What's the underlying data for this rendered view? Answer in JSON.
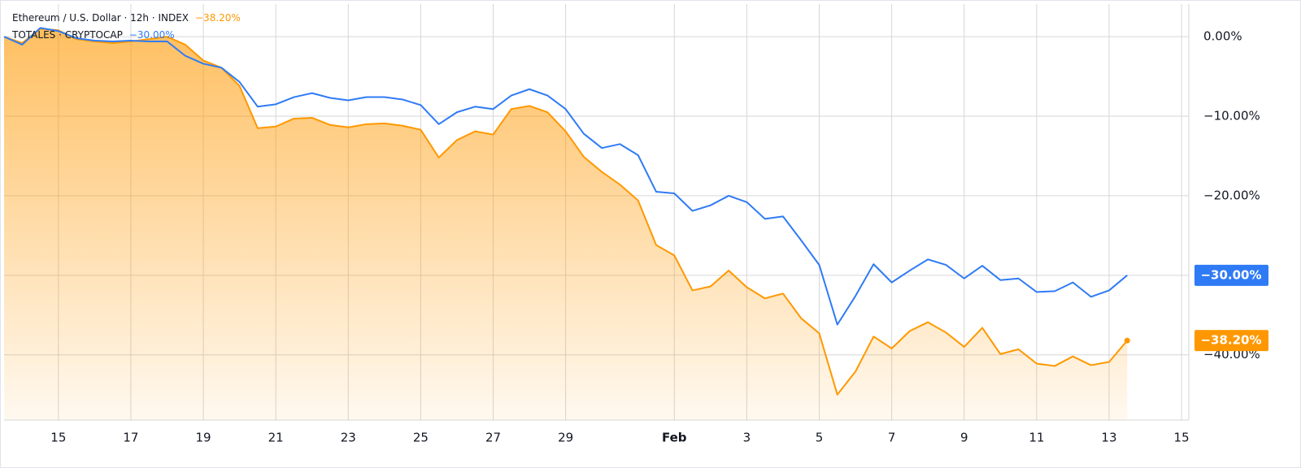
{
  "chart_data": {
    "type": "line",
    "x": [
      13.5,
      14,
      14.5,
      15,
      15.5,
      16,
      16.5,
      17,
      17.5,
      18,
      18.5,
      19,
      19.5,
      20,
      20.5,
      21,
      21.5,
      22,
      22.5,
      23,
      23.5,
      24,
      24.5,
      25,
      25.5,
      26,
      26.5,
      27,
      27.5,
      28,
      28.5,
      29,
      29.5,
      30,
      30.5,
      31,
      31.5,
      32,
      32.5,
      33,
      33.5,
      34,
      34.5,
      35,
      35.5,
      36,
      36.5,
      37,
      37.5,
      38,
      38.5,
      39,
      39.5,
      40,
      40.5,
      41,
      41.5,
      42,
      42.5,
      43,
      43.5,
      44,
      44.5
    ],
    "series": [
      {
        "name": "Ethereum / U.S. Dollar · 12h · INDEX",
        "color": "#ff9800",
        "area": true,
        "last_value_label": "−38.20%",
        "values": [
          0,
          -0.8,
          1.0,
          0.8,
          -0.3,
          -0.6,
          -0.8,
          -0.6,
          -0.3,
          0.0,
          -1.0,
          -3.0,
          -3.9,
          -6.2,
          -11.5,
          -11.3,
          -10.3,
          -10.2,
          -11.1,
          -11.4,
          -11.0,
          -10.9,
          -11.2,
          -11.7,
          -15.2,
          -13.0,
          -11.9,
          -12.3,
          -9.1,
          -8.7,
          -9.5,
          -11.9,
          -15.1,
          -17.0,
          -18.6,
          -20.6,
          -26.2,
          -27.5,
          -31.9,
          -31.4,
          -29.4,
          -31.5,
          -32.9,
          -32.3,
          -35.4,
          -37.3,
          -45.0,
          -42.1,
          -37.7,
          -39.2,
          -37.0,
          -35.9,
          -37.2,
          -39.0,
          -36.6,
          -39.9,
          -39.3,
          -41.1,
          -41.4,
          -40.2,
          -41.3,
          -40.9,
          -38.2
        ]
      },
      {
        "name": "TOTALES · CRYPTOCAP",
        "color": "#2f7bf5",
        "area": false,
        "last_value_label": "−30.00%",
        "values": [
          0,
          -1.0,
          1.1,
          0.7,
          -0.2,
          -0.5,
          -0.6,
          -0.5,
          -0.6,
          -0.6,
          -2.4,
          -3.4,
          -3.9,
          -5.7,
          -8.8,
          -8.5,
          -7.6,
          -7.1,
          -7.7,
          -8.0,
          -7.6,
          -7.6,
          -7.9,
          -8.6,
          -11.0,
          -9.5,
          -8.8,
          -9.1,
          -7.4,
          -6.6,
          -7.4,
          -9.1,
          -12.2,
          -14.0,
          -13.5,
          -14.9,
          -19.5,
          -19.7,
          -21.9,
          -21.2,
          -20.0,
          -20.8,
          -22.9,
          -22.6,
          -25.6,
          -28.7,
          -36.2,
          -32.6,
          -28.6,
          -30.9,
          -29.4,
          -28.0,
          -28.7,
          -30.4,
          -28.8,
          -30.6,
          -30.4,
          -32.1,
          -32.0,
          -30.9,
          -32.7,
          -31.9,
          -30.0
        ]
      }
    ],
    "xlim": [
      13.5,
      46.2
    ],
    "xticks": [
      15,
      17,
      19,
      21,
      23,
      25,
      27,
      29,
      {
        "value": 32,
        "label": "Feb"
      },
      {
        "value": 34,
        "label": "3"
      },
      {
        "value": 36,
        "label": "5"
      },
      {
        "value": 38,
        "label": "7"
      },
      {
        "value": 40,
        "label": "9"
      },
      {
        "value": 42,
        "label": "11"
      },
      {
        "value": 44,
        "label": "13"
      },
      {
        "value": 46,
        "label": "15"
      }
    ],
    "ylim": [
      -48.2,
      4.1
    ],
    "yticks": [
      {
        "value": 0,
        "label": "0.00%"
      },
      {
        "value": -10,
        "label": "−10.00%"
      },
      {
        "value": -20,
        "label": "−20.00%"
      },
      {
        "value": -30,
        "label": "−30.00%"
      },
      {
        "value": -40,
        "label": "−40.00%"
      }
    ],
    "grid": true
  }
}
